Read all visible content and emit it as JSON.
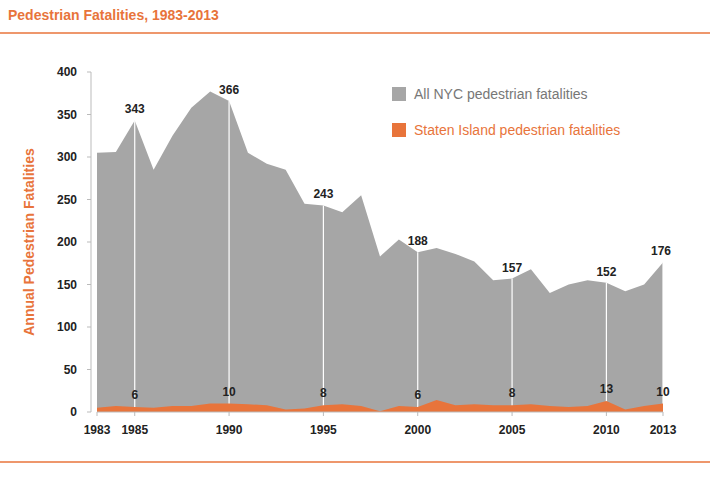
{
  "chart_data": {
    "type": "area",
    "title": "Pedestrian Fatalities, 1983-2013",
    "y_label": "Annual Pedestrian Fatalities",
    "x": [
      1983,
      1984,
      1985,
      1986,
      1987,
      1988,
      1989,
      1990,
      1991,
      1992,
      1993,
      1994,
      1995,
      1996,
      1997,
      1998,
      1999,
      2000,
      2001,
      2002,
      2003,
      2004,
      2005,
      2006,
      2007,
      2008,
      2009,
      2010,
      2011,
      2012,
      2013
    ],
    "xlim": [
      1983,
      2013
    ],
    "xticks": [
      1983,
      1985,
      1990,
      1995,
      2000,
      2005,
      2010,
      2013
    ],
    "ylim": [
      0,
      400
    ],
    "yticks": [
      0,
      50,
      100,
      150,
      200,
      250,
      300,
      350,
      400
    ],
    "grid": false,
    "stacked": false,
    "legend": "upper right",
    "data_labels": true,
    "series": [
      {
        "name": "All NYC pedestrian fatalities",
        "color": "#a6a6a6",
        "values": [
          305,
          306,
          343,
          285,
          325,
          358,
          377,
          366,
          305,
          292,
          285,
          245,
          243,
          235,
          255,
          183,
          203,
          188,
          193,
          186,
          177,
          155,
          157,
          168,
          140,
          150,
          155,
          152,
          142,
          150,
          176
        ],
        "value_labels": [
          null,
          null,
          "343",
          null,
          null,
          null,
          null,
          "366",
          null,
          null,
          null,
          null,
          "243",
          null,
          null,
          null,
          null,
          "188",
          null,
          null,
          null,
          null,
          "157",
          null,
          null,
          null,
          null,
          "152",
          null,
          null,
          "176"
        ]
      },
      {
        "name": "Staten Island pedestrian fatalities",
        "color": "#e8743b",
        "values": [
          5,
          7,
          6,
          5,
          7,
          7,
          10,
          10,
          9,
          8,
          3,
          4,
          8,
          9,
          7,
          1,
          7,
          6,
          14,
          8,
          9,
          8,
          8,
          9,
          7,
          6,
          7,
          13,
          3,
          7,
          10
        ],
        "value_labels": [
          null,
          null,
          "6",
          null,
          null,
          null,
          null,
          "10",
          null,
          null,
          null,
          null,
          "8",
          null,
          null,
          null,
          null,
          "6",
          null,
          null,
          null,
          null,
          "8",
          null,
          null,
          null,
          null,
          "13",
          null,
          null,
          "10"
        ]
      }
    ]
  }
}
